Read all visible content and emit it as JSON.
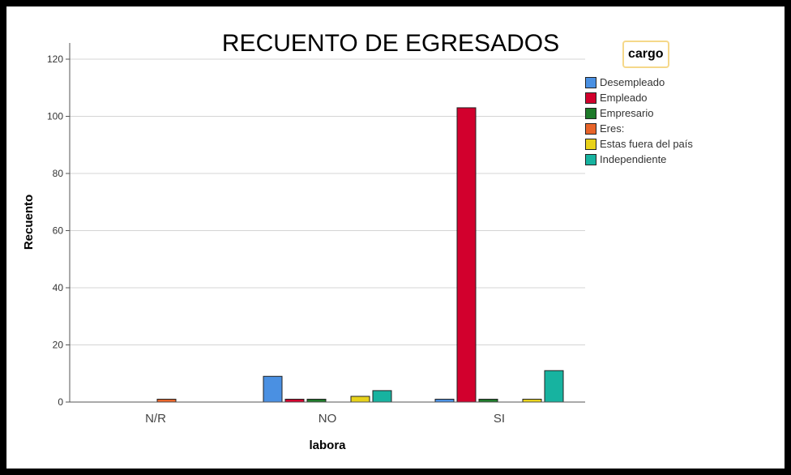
{
  "chart_data": {
    "type": "bar",
    "title": "RECUENTO DE EGRESADOS",
    "xlabel": "labora",
    "ylabel": "Recuento",
    "ylim": [
      0,
      120
    ],
    "yticks": [
      0,
      20,
      40,
      60,
      80,
      100,
      120
    ],
    "grid": true,
    "legend_title": "cargo",
    "legend_position": "right",
    "categories": [
      "N/R",
      "NO",
      "SI"
    ],
    "series": [
      {
        "name": "Desempleado",
        "color": "#4a90e2",
        "values": [
          0,
          9,
          1
        ]
      },
      {
        "name": "Empleado",
        "color": "#d2002d",
        "values": [
          0,
          1,
          103
        ]
      },
      {
        "name": "Empresario",
        "color": "#1e7a2a",
        "values": [
          0,
          1,
          1
        ]
      },
      {
        "name": "Eres:",
        "color": "#e8642a",
        "values": [
          1,
          0,
          0
        ]
      },
      {
        "name": "Estas fuera del país",
        "color": "#e8d21a",
        "values": [
          0,
          2,
          1
        ]
      },
      {
        "name": "Independiente",
        "color": "#17b3a0",
        "values": [
          0,
          4,
          11
        ]
      }
    ]
  }
}
